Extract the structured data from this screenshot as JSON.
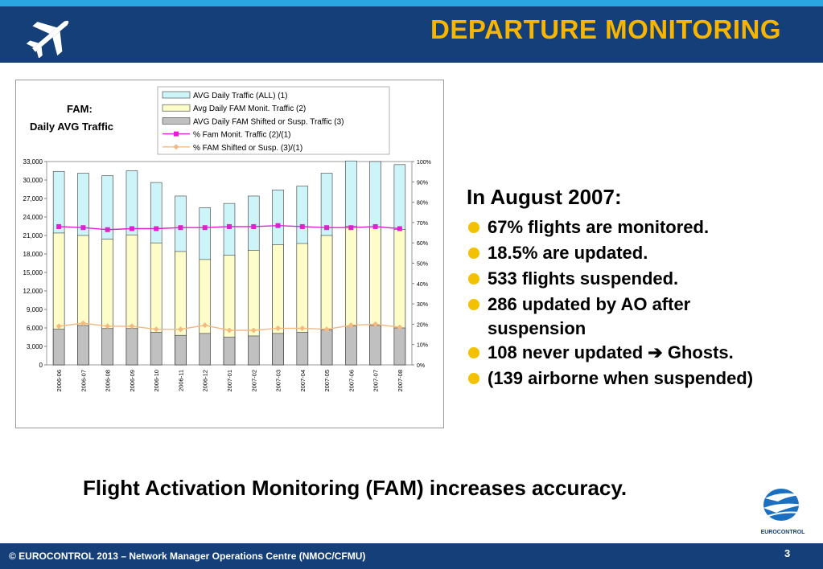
{
  "header": {
    "title": "DEPARTURE MONITORING",
    "icon": "airplane-icon"
  },
  "chart_data": {
    "type": "bar",
    "title": "FAM:\nDaily AVG Traffic",
    "categories": [
      "2006-06",
      "2006-07",
      "2006-08",
      "2006-09",
      "2006-10",
      "2006-11",
      "2006-12",
      "2007-01",
      "2007-02",
      "2007-03",
      "2007-04",
      "2007-05",
      "2007-06",
      "2007-07",
      "2007-08"
    ],
    "y_ticks": [
      "0",
      "3,000",
      "6,000",
      "9,000",
      "12,000",
      "15,000",
      "18,000",
      "21,000",
      "24,000",
      "27,000",
      "30,000",
      "33,000"
    ],
    "y2_ticks": [
      "0%",
      "10%",
      "20%",
      "30%",
      "40%",
      "50%",
      "60%",
      "70%",
      "80%",
      "90%",
      "100%"
    ],
    "ylim": [
      0,
      33000
    ],
    "y2lim": [
      0,
      100
    ],
    "legend_position": "top-right",
    "series": [
      {
        "name": "AVG Daily Traffic (ALL) (1)",
        "kind": "bar",
        "color": "#cdf5f9",
        "values": [
          31400,
          31100,
          30700,
          31500,
          29600,
          27400,
          25500,
          26200,
          27400,
          28400,
          29000,
          31100,
          33100,
          33000,
          32500
        ]
      },
      {
        "name": "Avg Daily FAM Monit. Traffic (2)",
        "kind": "bar",
        "color": "#fdfdc9",
        "values": [
          21400,
          21000,
          20400,
          21100,
          19800,
          18400,
          17100,
          17800,
          18600,
          19500,
          19700,
          21000,
          22500,
          22400,
          22000
        ]
      },
      {
        "name": "AVG Daily FAM Shifted or Susp. Traffic (3)",
        "kind": "bar",
        "color": "#c0c0c0",
        "values": [
          5800,
          6400,
          5900,
          5900,
          5300,
          4800,
          5100,
          4500,
          4700,
          5100,
          5300,
          5700,
          6300,
          6400,
          6000
        ]
      },
      {
        "name": "% Fam Monit. Traffic (2)/(1)",
        "kind": "line",
        "axis": "y2",
        "color": "#e020d0",
        "values": [
          68,
          67.5,
          66.5,
          67,
          67,
          67.5,
          67.5,
          68,
          68,
          68.5,
          68,
          67.5,
          67.5,
          68,
          67
        ]
      },
      {
        "name": "% FAM Shifted or Susp. (3)/(1)",
        "kind": "line",
        "axis": "y2",
        "color": "#f4b880",
        "values": [
          19,
          20.5,
          19,
          19,
          17.5,
          17.5,
          19.5,
          17,
          17,
          18,
          18,
          17.5,
          19.5,
          20,
          18.5
        ]
      }
    ]
  },
  "bullets": {
    "heading": "In August 2007:",
    "items": [
      {
        "text": "67% flights are monitored."
      },
      {
        "text": "18.5% are updated."
      },
      {
        "text": "533 flights suspended."
      },
      {
        "text": "286 updated by AO after",
        "text2": "suspension"
      },
      {
        "text": "108 never updated ➔ Ghosts."
      },
      {
        "text": "(139 airborne when suspended)"
      }
    ],
    "bullet_color": "#f2c200"
  },
  "tagline": "Flight Activation Monitoring (FAM) increases accuracy.",
  "logo": {
    "text": "EUROCONTROL",
    "icon": "eurocontrol-logo-icon"
  },
  "footer": {
    "copyright": "© EUROCONTROL 2013 – Network Manager Operations Centre (NMOC/CFMU)",
    "page": "3"
  }
}
